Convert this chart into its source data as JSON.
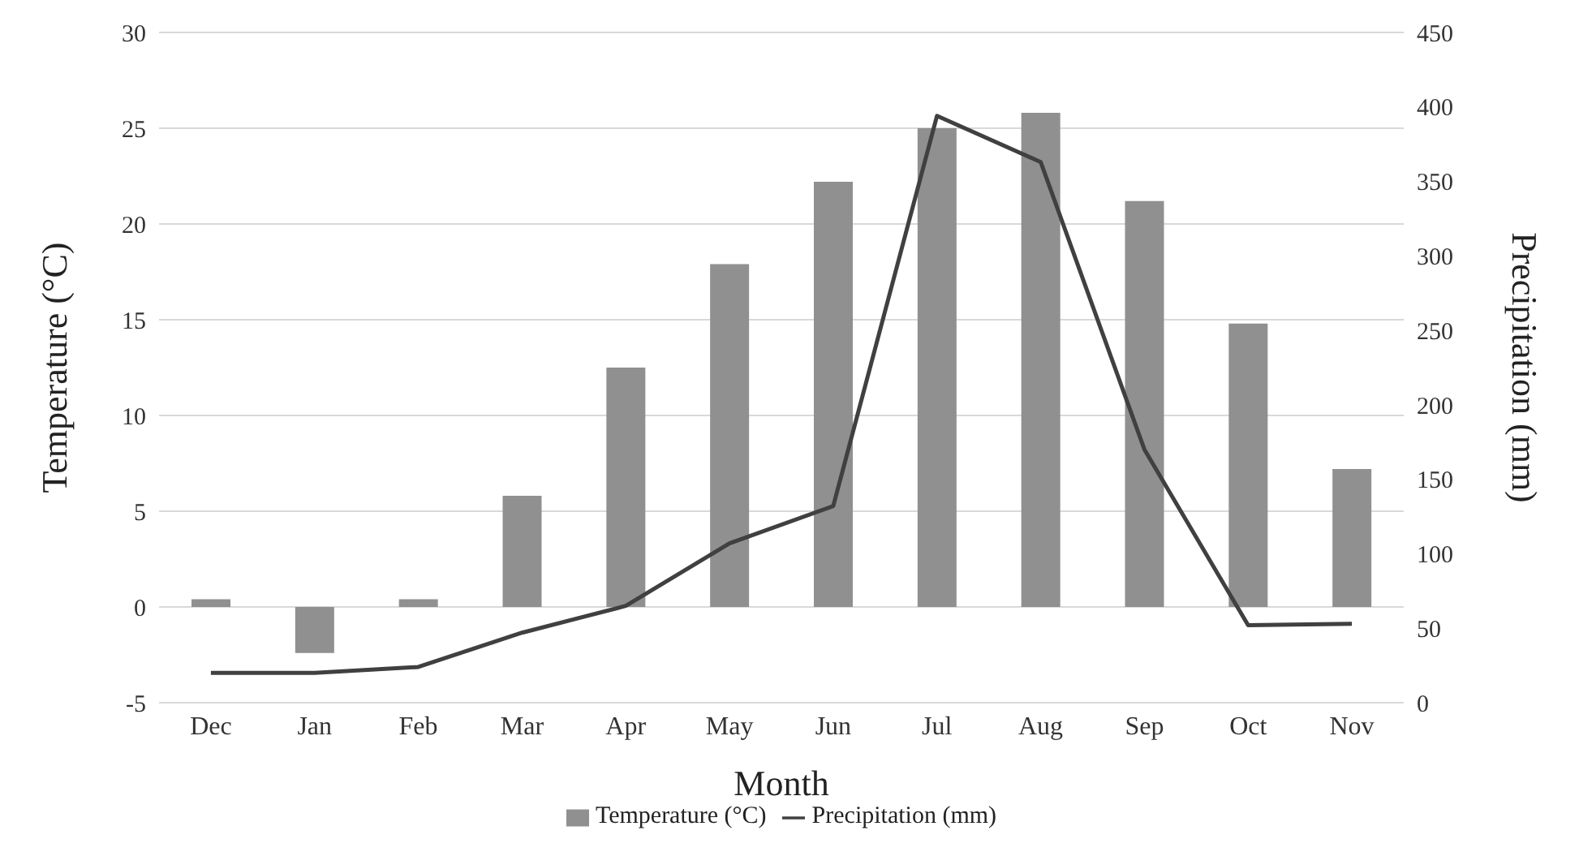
{
  "chart_data": {
    "type": "bar",
    "xlabel": "Month",
    "ylabel": "Temperature (°C)",
    "y2label": "Precipitation (mm)",
    "categories": [
      "Dec",
      "Jan",
      "Feb",
      "Mar",
      "Apr",
      "May",
      "Jun",
      "Jul",
      "Aug",
      "Sep",
      "Oct",
      "Nov"
    ],
    "series": [
      {
        "name": "Temperature (°C)",
        "color": "#909090",
        "values": [
          0.4,
          -2.4,
          0.4,
          5.8,
          12.5,
          17.9,
          22.2,
          25.0,
          25.8,
          21.2,
          14.8,
          7.2
        ]
      },
      {
        "name": "Precipitation (mm)",
        "type": "line",
        "axis": "y2",
        "color": "#404040",
        "values": [
          20,
          20,
          24,
          47,
          65,
          107,
          132,
          394,
          363,
          170,
          52,
          53
        ]
      }
    ],
    "ylim": [
      -5,
      30
    ],
    "yticks": [
      -5,
      0,
      5,
      10,
      15,
      20,
      25,
      30
    ],
    "y2lim": [
      0,
      450
    ],
    "y2ticks": [
      0,
      50,
      100,
      150,
      200,
      250,
      300,
      350,
      400,
      450
    ],
    "grid": "y",
    "legend": "bottom",
    "marker": "none"
  }
}
